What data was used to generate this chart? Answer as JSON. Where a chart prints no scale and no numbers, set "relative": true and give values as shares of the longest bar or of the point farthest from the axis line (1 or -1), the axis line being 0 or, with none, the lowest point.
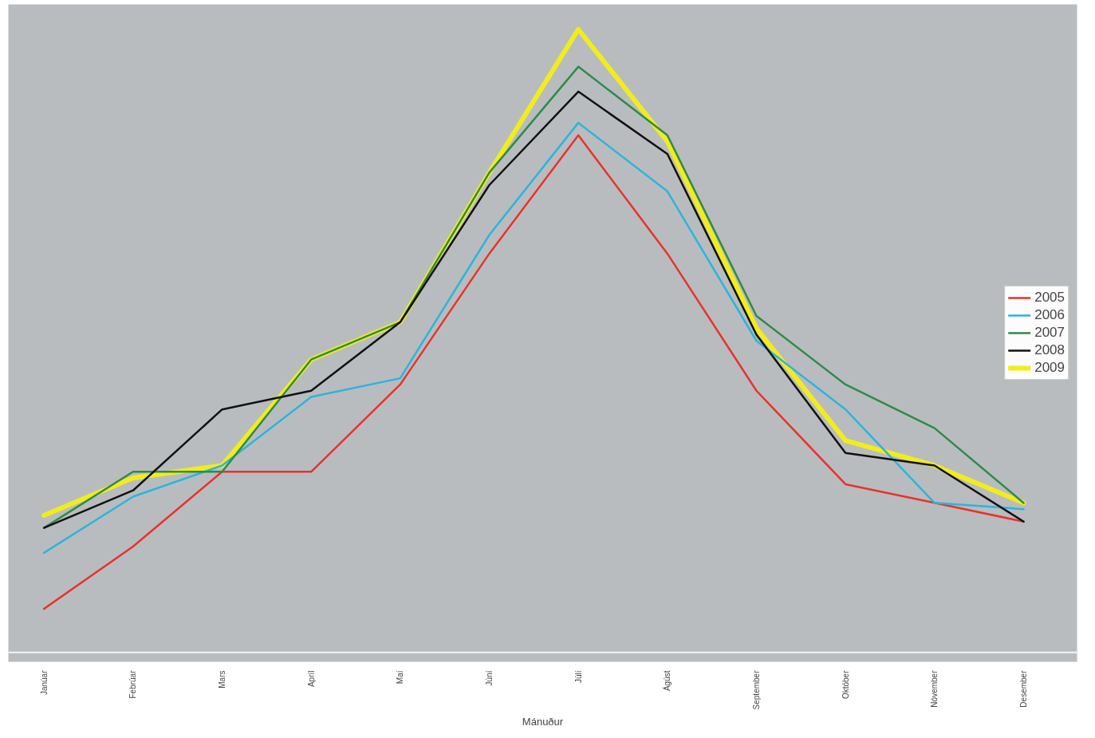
{
  "chart_data": {
    "type": "line",
    "relative": true,
    "xlabel": "Mánuður",
    "categories": [
      "Janúar",
      "Febrúar",
      "Mars",
      "Apríl",
      "Maí",
      "Júní",
      "Júlí",
      "Ágúst",
      "September",
      "Október",
      "Nóvember",
      "Desember"
    ],
    "series": [
      {
        "name": "2005",
        "color": "#e8332a",
        "values": [
          0.07,
          0.17,
          0.29,
          0.29,
          0.43,
          0.64,
          0.83,
          0.64,
          0.42,
          0.27,
          0.24,
          0.21
        ]
      },
      {
        "name": "2006",
        "color": "#2bb5dc",
        "values": [
          0.16,
          0.25,
          0.3,
          0.41,
          0.44,
          0.67,
          0.85,
          0.74,
          0.5,
          0.39,
          0.24,
          0.23
        ]
      },
      {
        "name": "2007",
        "color": "#2e8b4a",
        "values": [
          0.2,
          0.29,
          0.29,
          0.47,
          0.53,
          0.77,
          0.94,
          0.83,
          0.54,
          0.43,
          0.36,
          0.24
        ]
      },
      {
        "name": "2008",
        "color": "#111111",
        "values": [
          0.2,
          0.26,
          0.39,
          0.42,
          0.53,
          0.75,
          0.9,
          0.8,
          0.51,
          0.32,
          0.3,
          0.21
        ]
      },
      {
        "name": "2009",
        "color": "#f2ec1c",
        "values": [
          0.22,
          0.28,
          0.3,
          0.47,
          0.53,
          0.77,
          1.0,
          0.82,
          0.52,
          0.34,
          0.3,
          0.24
        ]
      }
    ],
    "legend": "right",
    "grid": false
  }
}
